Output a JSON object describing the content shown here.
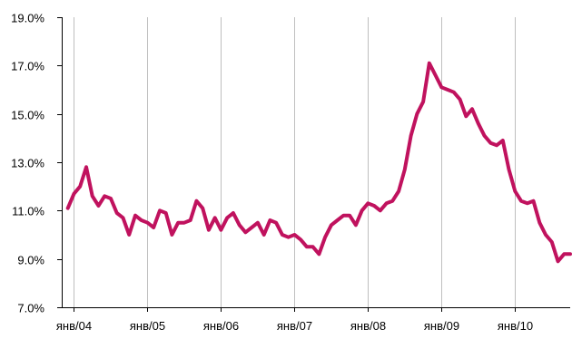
{
  "chart_data": {
    "type": "line",
    "title": "",
    "xlabel": "",
    "ylabel": "",
    "ylim": [
      7.0,
      19.0
    ],
    "yticks": [
      "7.0%",
      "9.0%",
      "11.0%",
      "13.0%",
      "15.0%",
      "17.0%",
      "19.0%"
    ],
    "ytick_values": [
      7,
      9,
      11,
      13,
      15,
      17,
      19
    ],
    "xticks": [
      "янв/04",
      "янв/05",
      "янв/06",
      "янв/07",
      "янв/08",
      "янв/09",
      "янв/10"
    ],
    "xtick_values": [
      "2004-01",
      "2005-01",
      "2006-01",
      "2007-01",
      "2008-01",
      "2009-01",
      "2010-01"
    ],
    "xlim": [
      "2003-11",
      "2010-10"
    ],
    "grid": {
      "vertical": true,
      "horizontal": false
    },
    "legend": "none",
    "series": [
      {
        "color": "#c0125e",
        "x": [
          "2003-12",
          "2004-01",
          "2004-02",
          "2004-03",
          "2004-04",
          "2004-05",
          "2004-06",
          "2004-07",
          "2004-08",
          "2004-09",
          "2004-10",
          "2004-11",
          "2004-12",
          "2005-01",
          "2005-02",
          "2005-03",
          "2005-04",
          "2005-05",
          "2005-06",
          "2005-07",
          "2005-08",
          "2005-09",
          "2005-10",
          "2005-11",
          "2005-12",
          "2006-01",
          "2006-02",
          "2006-03",
          "2006-04",
          "2006-05",
          "2006-06",
          "2006-07",
          "2006-08",
          "2006-09",
          "2006-10",
          "2006-11",
          "2006-12",
          "2007-01",
          "2007-02",
          "2007-03",
          "2007-04",
          "2007-05",
          "2007-06",
          "2007-07",
          "2007-08",
          "2007-09",
          "2007-10",
          "2007-11",
          "2007-12",
          "2008-01",
          "2008-02",
          "2008-03",
          "2008-04",
          "2008-05",
          "2008-06",
          "2008-07",
          "2008-08",
          "2008-09",
          "2008-10",
          "2008-11",
          "2008-12",
          "2009-01",
          "2009-02",
          "2009-03",
          "2009-04",
          "2009-05",
          "2009-06",
          "2009-07",
          "2009-08",
          "2009-09",
          "2009-10",
          "2009-11",
          "2009-12",
          "2010-01",
          "2010-02",
          "2010-03",
          "2010-04",
          "2010-05",
          "2010-06",
          "2010-07",
          "2010-08",
          "2010-09",
          "2010-10"
        ],
        "values": [
          11.1,
          11.7,
          12.0,
          12.8,
          11.6,
          11.2,
          11.6,
          11.5,
          10.9,
          10.7,
          10.0,
          10.8,
          10.6,
          10.5,
          10.3,
          11.0,
          10.9,
          10.0,
          10.5,
          10.5,
          10.6,
          11.4,
          11.1,
          10.2,
          10.7,
          10.2,
          10.7,
          10.9,
          10.4,
          10.1,
          10.3,
          10.5,
          10.0,
          10.6,
          10.5,
          10.0,
          9.9,
          10.0,
          9.8,
          9.5,
          9.5,
          9.2,
          9.9,
          10.4,
          10.6,
          10.8,
          10.8,
          10.4,
          11.0,
          11.3,
          11.2,
          11.0,
          11.3,
          11.4,
          11.8,
          12.7,
          14.1,
          15.0,
          15.5,
          17.1,
          16.6,
          16.1,
          16.0,
          15.9,
          15.6,
          14.9,
          15.2,
          14.6,
          14.1,
          13.8,
          13.7,
          13.9,
          12.7,
          11.8,
          11.4,
          11.3,
          11.4,
          10.5,
          10.0,
          9.7,
          8.9,
          9.2,
          9.2
        ]
      }
    ]
  }
}
